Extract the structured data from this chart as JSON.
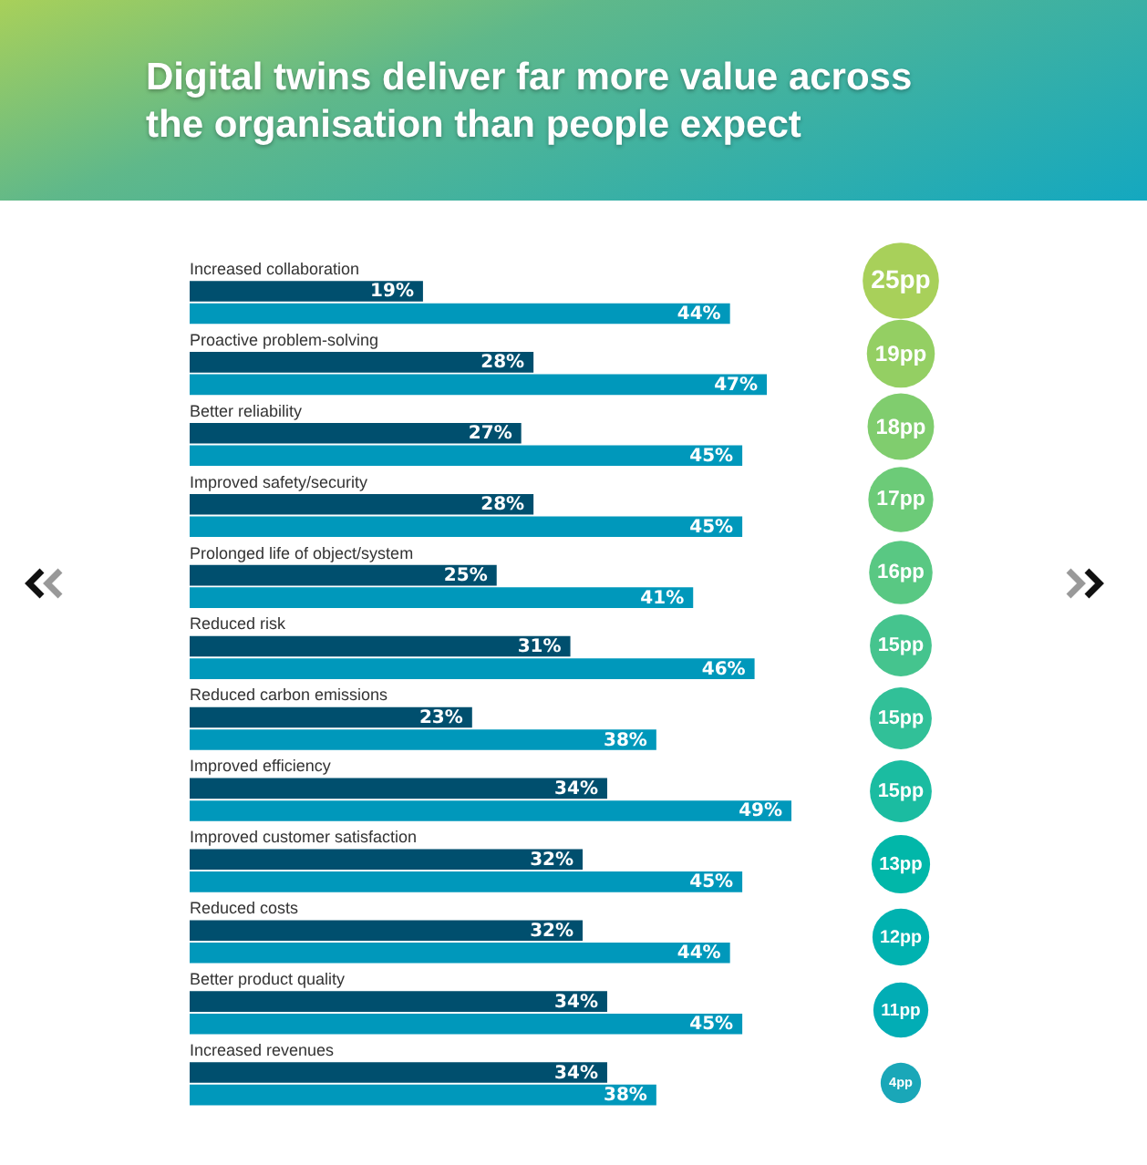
{
  "chart_data": {
    "type": "bar",
    "orientation": "horizontal",
    "title": "Digital twins deliver far more value across the organisation than people expect",
    "categories": [
      "Increased collaboration",
      "Proactive problem-solving",
      "Better reliability",
      "Improved safety/security",
      "Prolonged life of object/system",
      "Reduced risk",
      "Reduced carbon emissions",
      "Improved efficiency",
      "Improved customer satisfaction",
      "Reduced costs",
      "Better product quality",
      "Increased revenues"
    ],
    "series": [
      {
        "color": "#004f6e",
        "values": [
          19,
          28,
          27,
          28,
          25,
          31,
          23,
          34,
          32,
          32,
          34,
          34
        ],
        "value_labels": [
          "19%",
          "28%",
          "27%",
          "28%",
          "25%",
          "31%",
          "23%",
          "34%",
          "32%",
          "32%",
          "34%",
          "34%"
        ]
      },
      {
        "color": "#0098bb",
        "values": [
          44,
          47,
          45,
          45,
          41,
          46,
          38,
          49,
          45,
          44,
          45,
          38
        ],
        "value_labels": [
          "44%",
          "47%",
          "45%",
          "45%",
          "41%",
          "46%",
          "38%",
          "49%",
          "45%",
          "44%",
          "45%",
          "38%"
        ]
      }
    ],
    "annotations": [
      "25pp",
      "19pp",
      "18pp",
      "17pp",
      "16pp",
      "15pp",
      "15pp",
      "15pp",
      "13pp",
      "12pp",
      "11pp",
      "4pp"
    ]
  }
}
